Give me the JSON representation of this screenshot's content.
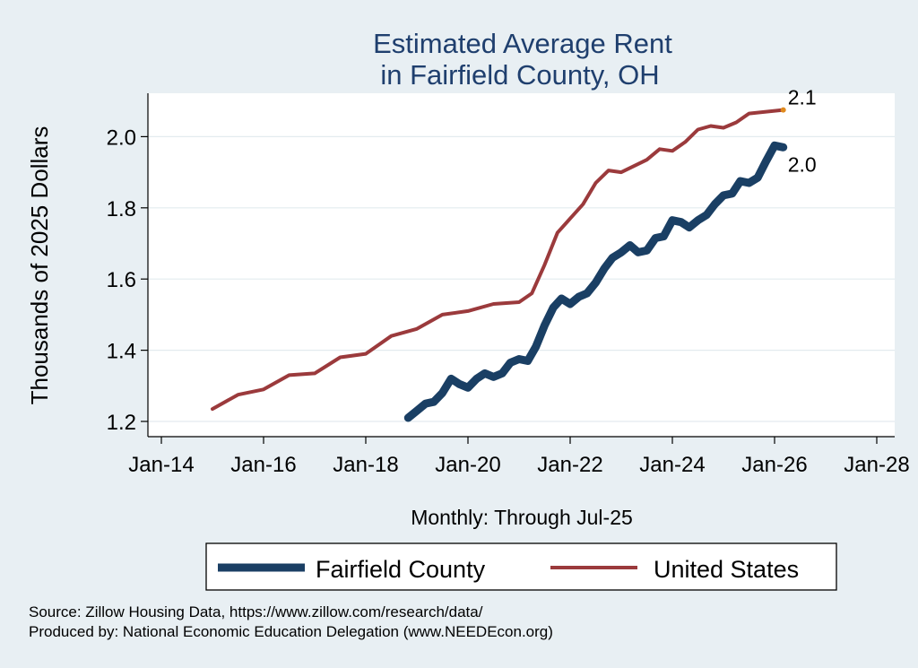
{
  "chart_data": {
    "type": "line",
    "title": "Estimated Average Rent",
    "subtitle": "in Fairfield County, OH",
    "xlabel": "Monthly: Through Jul-25",
    "ylabel": "Thousands of 2025 Dollars",
    "x_ticks": [
      "Jan-14",
      "Jan-16",
      "Jan-18",
      "Jan-20",
      "Jan-22",
      "Jan-24",
      "Jan-26",
      "Jan-28"
    ],
    "y_ticks": [
      "1.2",
      "1.4",
      "1.6",
      "1.8",
      "2.0"
    ],
    "xlim": [
      2014,
      2028
    ],
    "ylim": [
      1.2,
      2.1
    ],
    "grid": true,
    "legend_position": "bottom",
    "series": [
      {
        "name": "Fairfield County",
        "color": "#1a3f64",
        "points": [
          [
            2018.83,
            1.21
          ],
          [
            2019.0,
            1.23
          ],
          [
            2019.17,
            1.25
          ],
          [
            2019.33,
            1.255
          ],
          [
            2019.5,
            1.28
          ],
          [
            2019.67,
            1.32
          ],
          [
            2019.83,
            1.305
          ],
          [
            2020.0,
            1.295
          ],
          [
            2020.17,
            1.32
          ],
          [
            2020.33,
            1.335
          ],
          [
            2020.5,
            1.325
          ],
          [
            2020.67,
            1.335
          ],
          [
            2020.83,
            1.365
          ],
          [
            2021.0,
            1.375
          ],
          [
            2021.17,
            1.37
          ],
          [
            2021.33,
            1.41
          ],
          [
            2021.5,
            1.47
          ],
          [
            2021.67,
            1.52
          ],
          [
            2021.83,
            1.545
          ],
          [
            2022.0,
            1.53
          ],
          [
            2022.17,
            1.55
          ],
          [
            2022.33,
            1.56
          ],
          [
            2022.5,
            1.59
          ],
          [
            2022.67,
            1.63
          ],
          [
            2022.83,
            1.66
          ],
          [
            2023.0,
            1.675
          ],
          [
            2023.17,
            1.695
          ],
          [
            2023.33,
            1.675
          ],
          [
            2023.5,
            1.68
          ],
          [
            2023.67,
            1.715
          ],
          [
            2023.83,
            1.72
          ],
          [
            2024.0,
            1.765
          ],
          [
            2024.17,
            1.76
          ],
          [
            2024.33,
            1.745
          ],
          [
            2024.5,
            1.765
          ],
          [
            2024.67,
            1.78
          ],
          [
            2024.83,
            1.81
          ],
          [
            2025.0,
            1.835
          ],
          [
            2025.17,
            1.84
          ],
          [
            2025.33,
            1.875
          ],
          [
            2025.5,
            1.87
          ],
          [
            2025.67,
            1.885
          ],
          [
            2025.83,
            1.93
          ],
          [
            2026.0,
            1.975
          ],
          [
            2026.17,
            1.97
          ]
        ]
      },
      {
        "name": "United States",
        "color": "#9b3a3c",
        "points": [
          [
            2015.0,
            1.235
          ],
          [
            2015.5,
            1.275
          ],
          [
            2016.0,
            1.29
          ],
          [
            2016.5,
            1.33
          ],
          [
            2017.0,
            1.335
          ],
          [
            2017.5,
            1.38
          ],
          [
            2018.0,
            1.39
          ],
          [
            2018.5,
            1.44
          ],
          [
            2019.0,
            1.46
          ],
          [
            2019.5,
            1.5
          ],
          [
            2020.0,
            1.51
          ],
          [
            2020.5,
            1.53
          ],
          [
            2021.0,
            1.535
          ],
          [
            2021.25,
            1.56
          ],
          [
            2021.5,
            1.64
          ],
          [
            2021.75,
            1.73
          ],
          [
            2022.0,
            1.77
          ],
          [
            2022.25,
            1.81
          ],
          [
            2022.5,
            1.87
          ],
          [
            2022.75,
            1.905
          ],
          [
            2023.0,
            1.9
          ],
          [
            2023.5,
            1.935
          ],
          [
            2023.75,
            1.965
          ],
          [
            2024.0,
            1.96
          ],
          [
            2024.25,
            1.985
          ],
          [
            2024.5,
            2.02
          ],
          [
            2024.75,
            2.03
          ],
          [
            2025.0,
            2.025
          ],
          [
            2025.25,
            2.04
          ],
          [
            2025.5,
            2.065
          ],
          [
            2026.17,
            2.075
          ]
        ]
      }
    ],
    "end_labels": [
      {
        "series": "United States",
        "label": "2.1"
      },
      {
        "series": "Fairfield County",
        "label": "2.0"
      }
    ]
  },
  "source_lines": [
    "Source: Zillow Housing Data, https://www.zillow.com/research/data/",
    "Produced by: National Economic Education Delegation (www.NEEDEcon.org)"
  ]
}
